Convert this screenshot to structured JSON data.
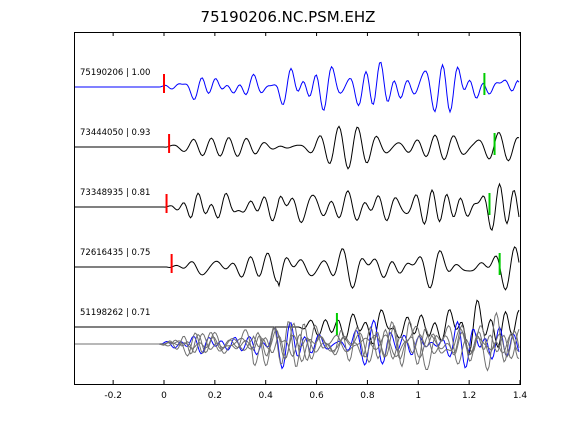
{
  "chart_data": {
    "type": "line",
    "title": "75190206.NC.PSM.EHZ",
    "xlabel": "",
    "ylabel": "",
    "xlim": [
      -0.35,
      1.4
    ],
    "xticks": [
      -0.2,
      0,
      0.2,
      0.4,
      0.6,
      0.8,
      1,
      1.2,
      1.4
    ],
    "xtick_labels": [
      "-0.2",
      "0",
      "0.2",
      "0.4",
      "0.6",
      "0.8",
      "1",
      "1.2",
      "1.4"
    ],
    "grid": false,
    "series": [
      {
        "name": "75190206 | 1.00",
        "label": "75190206 | 1.00",
        "color": "#0000ff",
        "p_pick": 0.0,
        "s_pick": 1.26,
        "seed": 1
      },
      {
        "name": "73444050 | 0.93",
        "label": "73444050 | 0.93",
        "color": "#000000",
        "p_pick": 0.02,
        "s_pick": 1.3,
        "seed": 2
      },
      {
        "name": "73348935 | 0.81",
        "label": "73348935 | 0.81",
        "color": "#000000",
        "p_pick": 0.01,
        "s_pick": 1.28,
        "seed": 3
      },
      {
        "name": "72616435 | 0.75",
        "label": "72616435 | 0.75",
        "color": "#000000",
        "p_pick": 0.03,
        "s_pick": 1.32,
        "seed": 4
      },
      {
        "name": "51198262 | 0.71",
        "label": "51198262 | 0.71",
        "color": "#000000",
        "p_pick": null,
        "s_pick": 0.68,
        "seed": 5
      }
    ],
    "p_pick_color": "#ff0000",
    "s_pick_color": "#00cc00",
    "stack_colors": {
      "primary": "#0000ff",
      "others": "#707070"
    }
  }
}
